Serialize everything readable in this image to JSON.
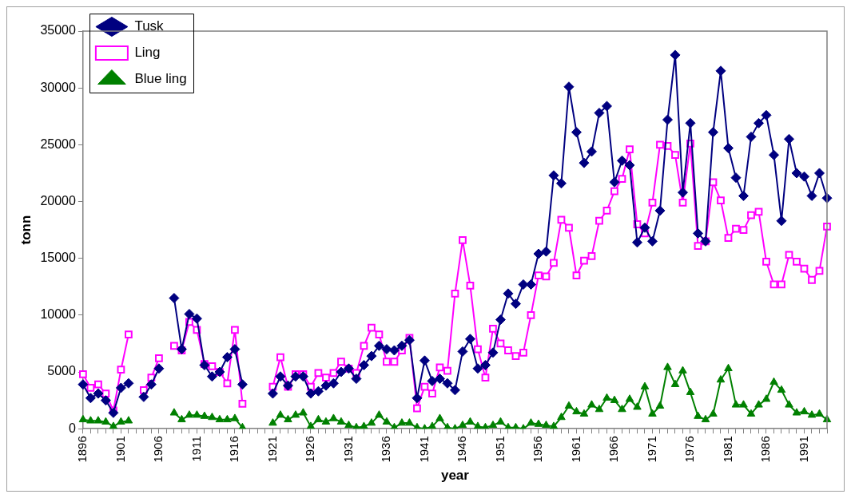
{
  "chart_data": {
    "type": "line",
    "xlabel": "year",
    "ylabel": "tonn",
    "categories": [
      "1896",
      null,
      null,
      null,
      null,
      "1901",
      null,
      null,
      null,
      null,
      "1906",
      null,
      null,
      null,
      null,
      "1911",
      null,
      null,
      null,
      null,
      "1916",
      null,
      null,
      null,
      null,
      "1921",
      null,
      null,
      null,
      null,
      "1926",
      null,
      null,
      null,
      null,
      "1931",
      null,
      null,
      null,
      null,
      "1936",
      null,
      null,
      null,
      null,
      "1941",
      null,
      null,
      null,
      null,
      "1946",
      null,
      null,
      null,
      null,
      "1951",
      null,
      null,
      null,
      null,
      "1956",
      null,
      null,
      null,
      null,
      "1961",
      null,
      null,
      null,
      null,
      "1966",
      null,
      null,
      null,
      null,
      "1971",
      null,
      null,
      null,
      null,
      "1976",
      null,
      null,
      null,
      null,
      "1981",
      null,
      null,
      null,
      null,
      "1986",
      null,
      null,
      null,
      null,
      "1991",
      null,
      null,
      null
    ],
    "series": [
      {
        "name": "Tusk",
        "color": "#000080",
        "marker": "diamond",
        "values": [
          3900,
          2700,
          3100,
          2500,
          1400,
          3600,
          4000,
          null,
          2800,
          3900,
          5300,
          null,
          11500,
          7000,
          10100,
          9700,
          5600,
          4600,
          5000,
          6300,
          7000,
          3900,
          null,
          null,
          null,
          3100,
          4600,
          3800,
          4600,
          4600,
          3100,
          3300,
          3800,
          4000,
          5000,
          5300,
          4400,
          5600,
          6400,
          7300,
          7000,
          6900,
          7300,
          7800,
          2700,
          6000,
          4200,
          4400,
          4000,
          3400,
          6800,
          7900,
          5300,
          5600,
          6700,
          9600,
          11900,
          11000,
          12700,
          12700,
          15400,
          15600,
          22300,
          21600,
          30100,
          26100,
          23400,
          24400,
          27800,
          28400,
          21700,
          23600,
          23200,
          16400,
          17700,
          16500,
          19200,
          27200,
          32900,
          20800,
          26900,
          17200,
          16500,
          26100,
          31500,
          24700,
          22100,
          20500,
          25700,
          26900,
          27600,
          24100,
          18300,
          25500,
          22500,
          22200,
          20500,
          22500,
          20300
        ]
      },
      {
        "name": "Ling",
        "color": "#ff00ff",
        "marker": "square",
        "values": [
          4800,
          3600,
          3900,
          3100,
          1600,
          5200,
          8300,
          null,
          3400,
          4500,
          6200,
          null,
          7300,
          6900,
          9400,
          8700,
          5700,
          5500,
          5000,
          4000,
          8700,
          2200,
          null,
          null,
          null,
          3700,
          6300,
          3700,
          4800,
          4800,
          3700,
          4900,
          4500,
          4900,
          5900,
          5300,
          4900,
          7300,
          8900,
          8300,
          5900,
          5900,
          6900,
          8000,
          1800,
          3700,
          3100,
          5400,
          5100,
          11900,
          16600,
          12600,
          7000,
          4500,
          8800,
          7500,
          6900,
          6400,
          6700,
          10000,
          13500,
          13400,
          14600,
          18400,
          17700,
          13500,
          14800,
          15200,
          18300,
          19200,
          20900,
          22000,
          24600,
          18000,
          17200,
          19900,
          25000,
          24900,
          24100,
          19900,
          25100,
          16100,
          16500,
          21700,
          20100,
          16800,
          17600,
          17500,
          18800,
          19100,
          14700,
          12700,
          12700,
          15300,
          14700,
          14100,
          13100,
          13900,
          17800
        ]
      },
      {
        "name": "Blue ling",
        "color": "#008000",
        "marker": "triangle",
        "values": [
          800,
          700,
          700,
          600,
          200,
          600,
          700,
          null,
          null,
          null,
          null,
          null,
          1400,
          800,
          1200,
          1200,
          1100,
          1000,
          800,
          800,
          900,
          100,
          null,
          null,
          null,
          500,
          1200,
          800,
          1200,
          1400,
          200,
          800,
          600,
          900,
          600,
          300,
          100,
          200,
          500,
          1200,
          600,
          100,
          500,
          500,
          100,
          0,
          200,
          900,
          100,
          0,
          300,
          600,
          200,
          100,
          300,
          600,
          100,
          100,
          0,
          500,
          400,
          300,
          200,
          1000,
          2000,
          1500,
          1300,
          2100,
          1700,
          2700,
          2500,
          1700,
          2600,
          1900,
          3700,
          1300,
          2000,
          5400,
          3900,
          5100,
          3200,
          1100,
          800,
          1300,
          4300,
          5300,
          2100,
          2100,
          1300,
          2100,
          2600,
          4100,
          3400,
          2100,
          1400,
          1500,
          1200,
          1300,
          800
        ]
      }
    ],
    "ylim": [
      0,
      35000
    ],
    "yticks": [
      0,
      5000,
      10000,
      15000,
      20000,
      25000,
      30000,
      35000
    ],
    "legend": "top left"
  }
}
